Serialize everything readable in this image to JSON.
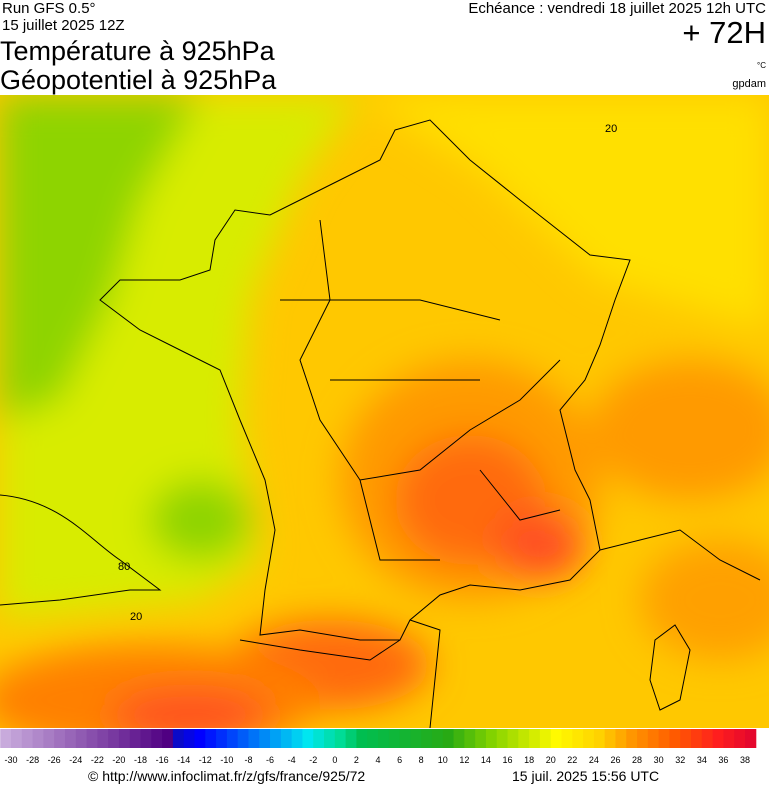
{
  "header": {
    "run": "Run GFS 0.5°",
    "run_date": "15 juillet 2025 12Z",
    "title": "Température à 925hPa",
    "subtitle": "Géopotentiel à 925hPa",
    "forecast": "Echéance : vendredi 18 juillet 2025 12h UTC",
    "lead": "+ 72H",
    "unit_temp": "°C",
    "unit_geo": "gpdam"
  },
  "map": {
    "contour_labels": [
      "20",
      "80",
      "20"
    ]
  },
  "legend": {
    "ticks": [
      -30,
      -28,
      -26,
      -24,
      -22,
      -20,
      -18,
      -16,
      -14,
      -12,
      -10,
      -8,
      -6,
      -4,
      -2,
      0,
      2,
      4,
      6,
      8,
      10,
      12,
      14,
      16,
      18,
      20,
      22,
      24,
      26,
      28,
      30,
      32,
      34,
      36,
      38
    ]
  },
  "footer": {
    "source": "© http://www.infoclimat.fr/z/gfs/france/925/72",
    "timestamp": "15 juil. 2025 15:56 UTC"
  }
}
